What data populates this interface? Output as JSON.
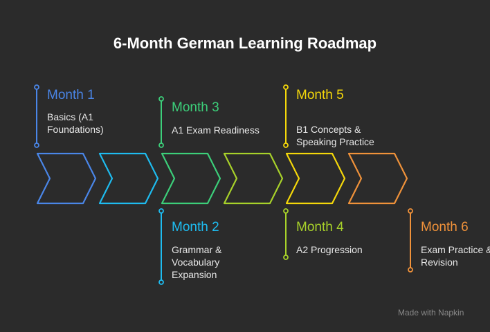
{
  "title": "6-Month German Learning Roadmap",
  "steps": [
    {
      "label": "Month 1",
      "desc": "Basics (A1 Foundations)",
      "color": "#4a86e8"
    },
    {
      "label": "Month 2",
      "desc": "Grammar & Vocabulary Expansion",
      "color": "#1ebcf0"
    },
    {
      "label": "Month 3",
      "desc": "A1 Exam Readiness",
      "color": "#3ccf7a"
    },
    {
      "label": "Month 4",
      "desc": "A2 Progression",
      "color": "#a8d22a"
    },
    {
      "label": "Month 5",
      "desc": "B1 Concepts & Speaking Practice",
      "color": "#f5d80a"
    },
    {
      "label": "Month 6",
      "desc": "Exam Practice & Revision",
      "color": "#f0923a"
    }
  ],
  "watermark": "Made with Napkin"
}
